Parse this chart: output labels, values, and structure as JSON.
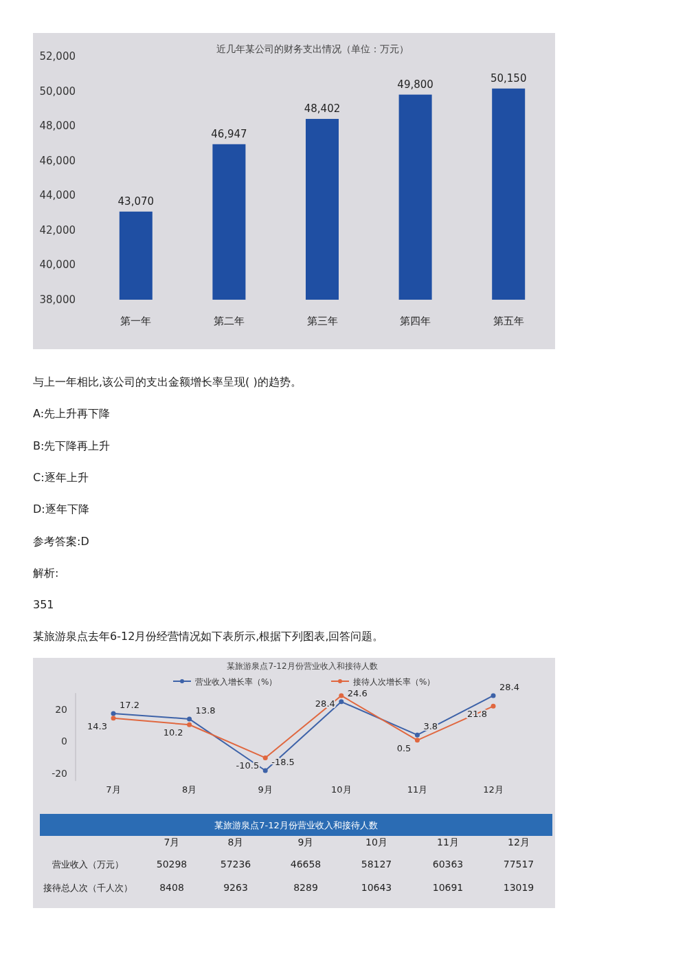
{
  "chart_data": [
    {
      "type": "bar",
      "title": "近几年某公司的财务支出情况（单位：万元）",
      "categories": [
        "第一年",
        "第二年",
        "第三年",
        "第四年",
        "第五年"
      ],
      "values": [
        43070,
        46947,
        48402,
        49800,
        50150
      ],
      "value_labels": [
        "43,070",
        "46,947",
        "48,402",
        "49,800",
        "50,150"
      ],
      "color": "#1f4fa3",
      "ylim": [
        38000,
        52000
      ],
      "yticks": [
        {
          "value": 38000,
          "label": "38,000"
        },
        {
          "value": 40000,
          "label": "40,000"
        },
        {
          "value": 42000,
          "label": "42,000"
        },
        {
          "value": 44000,
          "label": "44,000"
        },
        {
          "value": 46000,
          "label": "46,000"
        },
        {
          "value": 48000,
          "label": "48,000"
        },
        {
          "value": 50000,
          "label": "50,000"
        },
        {
          "value": 52000,
          "label": "52,000"
        }
      ],
      "annotations": [
        "与上一年相比,该公司的支出金额增长率呈现( )的趋势。",
        "A:先上升再下降",
        "B:先下降再上升",
        "C:逐年上升",
        "D:逐年下降",
        "参考答案:D",
        "解析:",
        "351"
      ]
    },
    {
      "type": "line",
      "title": "某旅游泉点7-12月份营业收入和接待人数",
      "categories": [
        "7月",
        "8月",
        "9月",
        "10月",
        "11月",
        "12月"
      ],
      "series": [
        {
          "name": "营业收入增长率（%）",
          "color": "#3d62a8",
          "values": [
            17.2,
            13.8,
            -18.5,
            24.6,
            3.8,
            28.4
          ]
        },
        {
          "name": "接待人次增长率（%）",
          "color": "#e0673f",
          "values": [
            14.3,
            10.2,
            -10.5,
            28.4,
            0.5,
            21.8
          ]
        }
      ],
      "ylim": [
        -25,
        30
      ],
      "yticks": [
        20,
        0,
        -20
      ],
      "data_labels": true,
      "marker": "circle",
      "legend": "top",
      "grid": false,
      "annotations": [
        "某旅游泉点去年6-12月份经营情况如下表所示,根据下列图表,回答问题。"
      ]
    },
    {
      "type": "heatmap",
      "title": "某旅游泉点7-12月份营业收入和接待人数",
      "color": "#2b6cb4",
      "categories": [
        "7月",
        "8月",
        "9月",
        "10月",
        "11月",
        "12月"
      ],
      "y_categories": [
        "营业收入（万元）",
        "接待总人次（千人次）"
      ],
      "data_labels": true,
      "cells": [
        [
          50298,
          57236,
          46658,
          58127,
          60363,
          77517
        ],
        [
          8408,
          9263,
          8289,
          10643,
          10691,
          13019
        ]
      ]
    }
  ]
}
